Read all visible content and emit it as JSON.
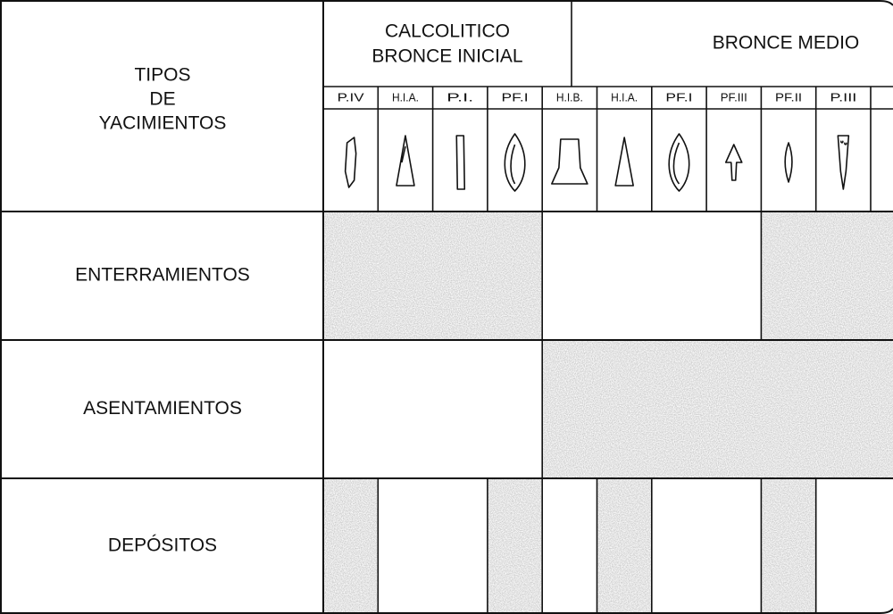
{
  "header": {
    "title_lines": [
      "TIPOS",
      "DE",
      "YACIMIENTOS"
    ],
    "periods": [
      {
        "lines": [
          "CALCOLITICO",
          "BRONCE INICIAL"
        ]
      },
      {
        "lines": [
          "BRONCE MEDIO"
        ]
      }
    ]
  },
  "columns": [
    "P.IV",
    "H.I.A.",
    "P.I.",
    "PF.I",
    "H.I.B.",
    "H.I.A.",
    "PF.I",
    "PF.III",
    "PF.II",
    "P.III"
  ],
  "rows": [
    {
      "label": "ENTERRAMIENTOS",
      "shaded": [
        true,
        true,
        true,
        true,
        false,
        false,
        false,
        false,
        true,
        true
      ]
    },
    {
      "label": "ASENTAMIENTOS",
      "shaded": [
        false,
        false,
        false,
        false,
        true,
        true,
        true,
        true,
        true,
        true
      ]
    },
    {
      "label": "DEPÓSITOS",
      "shaded": [
        true,
        false,
        false,
        true,
        false,
        true,
        false,
        false,
        true,
        false
      ]
    }
  ]
}
